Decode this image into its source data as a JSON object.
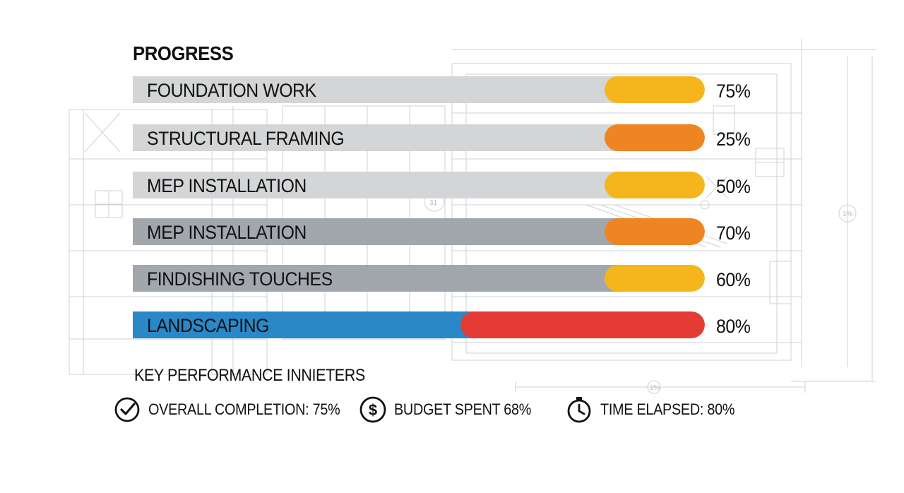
{
  "chart_data": {
    "type": "bar",
    "title": "PROGRESS",
    "orientation": "horizontal",
    "categories": [
      "FOUNDATION WORK",
      "STRUCTURAL FRAMING",
      "MEP INSTALLATION",
      "MEP INSTALLATION",
      "FINDISHING TOUCHES",
      "LANDSCAPING"
    ],
    "values": [
      75,
      25,
      50,
      70,
      60,
      80
    ],
    "value_labels": [
      "75%",
      "25%",
      "50%",
      "70%",
      "60%",
      "80%"
    ],
    "xlim": [
      0,
      100
    ]
  },
  "bars": [
    {
      "label": "FOUNDATION WORK",
      "value_text": "75%",
      "base_color": "#d3d5d7",
      "accent_color": "#f4b61c"
    },
    {
      "label": "STRUCTURAL FRAMING",
      "value_text": "25%",
      "base_color": "#d3d5d7",
      "accent_color": "#ef8522"
    },
    {
      "label": "MEP INSTALLATION",
      "value_text": "50%",
      "base_color": "#d3d5d7",
      "accent_color": "#f4b61c"
    },
    {
      "label": "MEP INSTALLATION",
      "value_text": "70%",
      "base_color": "#a1a7ac",
      "accent_color": "#ef8522"
    },
    {
      "label": "FINDISHING TOUCHES",
      "value_text": "60%",
      "base_color": "#a1a7ac",
      "accent_color": "#f4b61c"
    },
    {
      "label": "LANDSCAPING",
      "value_text": "80%",
      "base_color": "#2a88c8",
      "accent_color": "#e53b35"
    }
  ],
  "kpi": {
    "title": "KEY PERFORMANCE INNIETERS",
    "items": [
      {
        "icon": "check-circle-icon",
        "text": "OVERALL COMPLETION: 75%"
      },
      {
        "icon": "dollar-circle-icon",
        "text": "BUDGET SPENT 68%"
      },
      {
        "icon": "stopwatch-icon",
        "text": "TIME ELAPSED: 80%"
      }
    ]
  },
  "blueprint_labels": {
    "mark_a": "31",
    "mark_b": "1%",
    "mark_c": "1%"
  }
}
